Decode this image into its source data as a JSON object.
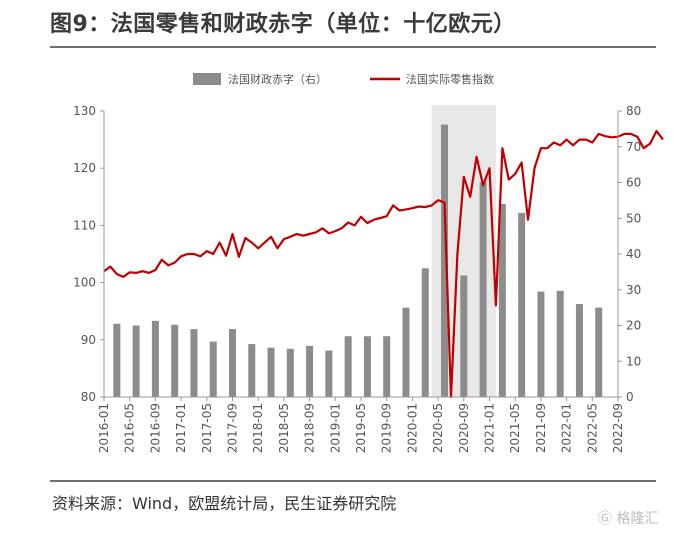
{
  "header": {
    "title": "图9：法国零售和财政赤字（单位：十亿欧元）"
  },
  "footer": {
    "source": "资料来源：Wind，欧盟统计局，民生证券研究院"
  },
  "watermark": {
    "text": "格隆汇"
  },
  "colors": {
    "bar": "#8c8c8c",
    "line": "#c00000",
    "highlight": "#e8e8e8",
    "axis": "#999999"
  },
  "chart_data": {
    "type": "bar+line",
    "legend": {
      "position": "top",
      "bar_label": "法国财政赤字（右）",
      "line_label": "法国实际零售指数"
    },
    "x_tick_labels": [
      "2016-01",
      "2016-05",
      "2016-09",
      "2017-01",
      "2017-05",
      "2017-09",
      "2018-01",
      "2018-05",
      "2018-09",
      "2019-01",
      "2019-05",
      "2019-09",
      "2020-01",
      "2020-05",
      "2020-09",
      "2021-01",
      "2021-05",
      "2021-09",
      "2022-01",
      "2022-05",
      "2022-09"
    ],
    "y_left": {
      "min": 80,
      "max": 130,
      "ticks": [
        80,
        90,
        100,
        110,
        120,
        130
      ]
    },
    "y_right": {
      "min": 0,
      "max": 80,
      "ticks": [
        0,
        10,
        20,
        30,
        40,
        50,
        60,
        70,
        80
      ]
    },
    "highlight_range": [
      "2020-04",
      "2021-02"
    ],
    "bars": {
      "name": "法国财政赤字（右）",
      "axis": "right",
      "points": [
        {
          "x": "2016-03",
          "value": 20.5
        },
        {
          "x": "2016-06",
          "value": 20.0
        },
        {
          "x": "2016-09",
          "value": 21.3
        },
        {
          "x": "2016-12",
          "value": 20.2
        },
        {
          "x": "2017-03",
          "value": 19.0
        },
        {
          "x": "2017-06",
          "value": 15.5
        },
        {
          "x": "2017-09",
          "value": 19.0
        },
        {
          "x": "2017-12",
          "value": 14.8
        },
        {
          "x": "2018-03",
          "value": 13.8
        },
        {
          "x": "2018-06",
          "value": 13.5
        },
        {
          "x": "2018-09",
          "value": 14.3
        },
        {
          "x": "2018-12",
          "value": 13.0
        },
        {
          "x": "2019-03",
          "value": 17.0
        },
        {
          "x": "2019-06",
          "value": 17.0
        },
        {
          "x": "2019-09",
          "value": 17.0
        },
        {
          "x": "2019-12",
          "value": 25.0
        },
        {
          "x": "2020-03",
          "value": 36.0
        },
        {
          "x": "2020-06",
          "value": 76.2
        },
        {
          "x": "2020-09",
          "value": 34.0
        },
        {
          "x": "2020-12",
          "value": 60.0
        },
        {
          "x": "2021-03",
          "value": 54.0
        },
        {
          "x": "2021-06",
          "value": 51.5
        },
        {
          "x": "2021-09",
          "value": 29.5
        },
        {
          "x": "2021-12",
          "value": 29.7
        },
        {
          "x": "2022-03",
          "value": 26.0
        },
        {
          "x": "2022-06",
          "value": 25.0
        }
      ]
    },
    "line": {
      "name": "法国实际零售指数",
      "axis": "left",
      "start": "2016-01",
      "frequency": "monthly",
      "values": [
        102.0,
        102.8,
        101.5,
        101.0,
        101.8,
        101.7,
        102.0,
        101.7,
        102.2,
        104.0,
        103.0,
        103.5,
        104.6,
        105.0,
        105.0,
        104.6,
        105.5,
        105.0,
        107.0,
        104.7,
        108.5,
        104.5,
        107.8,
        107.0,
        106.0,
        107.0,
        108.0,
        106.0,
        107.6,
        108.0,
        108.5,
        108.2,
        108.5,
        108.8,
        109.5,
        108.6,
        109.0,
        109.5,
        110.5,
        110.0,
        111.5,
        110.4,
        111.0,
        111.3,
        111.6,
        113.5,
        112.6,
        112.8,
        113.0,
        113.3,
        113.2,
        113.5,
        114.4,
        114.0,
        80.0,
        105.0,
        118.5,
        115.0,
        122.0,
        117.0,
        120.0,
        96.0,
        123.5,
        118.0,
        119.0,
        121.0,
        111.0,
        120.0,
        123.5,
        123.5,
        124.5,
        124.0,
        125.0,
        124.0,
        125.0,
        125.0,
        124.5,
        126.0,
        125.6,
        125.4,
        125.5,
        126.0,
        126.0,
        125.5,
        123.5,
        124.3,
        126.5,
        125.0
      ]
    }
  }
}
